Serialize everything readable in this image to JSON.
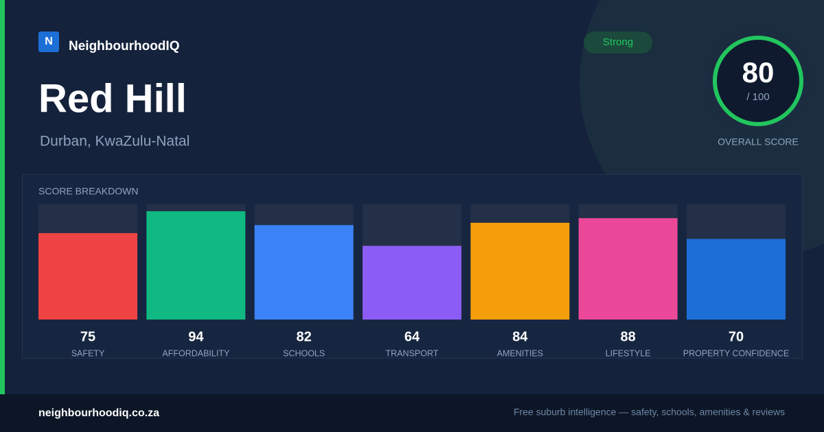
{
  "brand": "NeighbourhoodIQ",
  "logo_letter": "N",
  "title": "Red Hill",
  "location": "Durban, KwaZulu-Natal",
  "badge": "Strong",
  "overall": {
    "value": 80,
    "max_label": "/ 100",
    "label": "OVERALL SCORE"
  },
  "chart_data": {
    "type": "bar",
    "title": "SCORE BREAKDOWN",
    "categories": [
      "SAFETY",
      "AFFORDABILITY",
      "SCHOOLS",
      "TRANSPORT",
      "AMENITIES",
      "LIFESTYLE",
      "PROPERTY CONFIDENCE"
    ],
    "values": [
      75,
      94,
      82,
      64,
      84,
      88,
      70
    ],
    "colors": [
      "#ef4444",
      "#10b981",
      "#3b82f6",
      "#8b5cf6",
      "#f59e0b",
      "#ec4899",
      "#1d6fd8"
    ],
    "ylim": [
      0,
      100
    ]
  },
  "footer": {
    "site": "neighbourhoodiq.co.za",
    "tagline": "Free suburb intelligence — safety, schools, amenities & reviews"
  }
}
